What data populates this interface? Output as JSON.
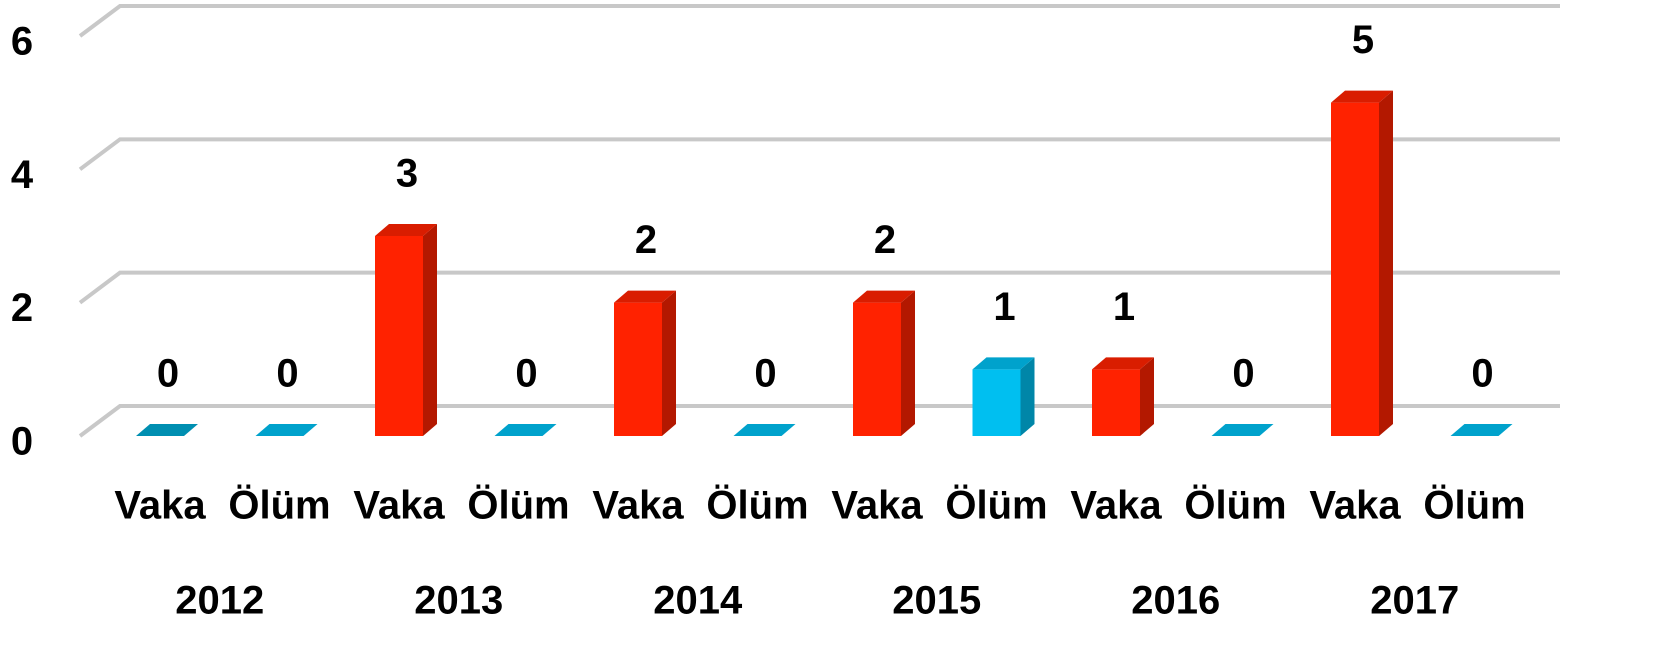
{
  "chart_data": {
    "type": "bar3d",
    "categories": [
      "Vaka",
      "Ölüm",
      "Vaka",
      "Ölüm",
      "Vaka",
      "Ölüm",
      "Vaka",
      "Ölüm",
      "Vaka",
      "Ölüm",
      "Vaka",
      "Ölüm"
    ],
    "groups": [
      "2012",
      "2013",
      "2014",
      "2015",
      "2016",
      "2017"
    ],
    "values": [
      0,
      0,
      3,
      0,
      2,
      0,
      2,
      1,
      1,
      0,
      5,
      0
    ],
    "colors": [
      "#00a8d0",
      "#00bff0",
      "#ff2200",
      "#00bff0",
      "#ff2200",
      "#00bff0",
      "#ff2200",
      "#00bff0",
      "#ff2200",
      "#00bff0",
      "#ff2200",
      "#00bff0"
    ],
    "ylim": [
      0,
      6
    ],
    "yticks": [
      0,
      2,
      4,
      6
    ],
    "grid": true
  }
}
